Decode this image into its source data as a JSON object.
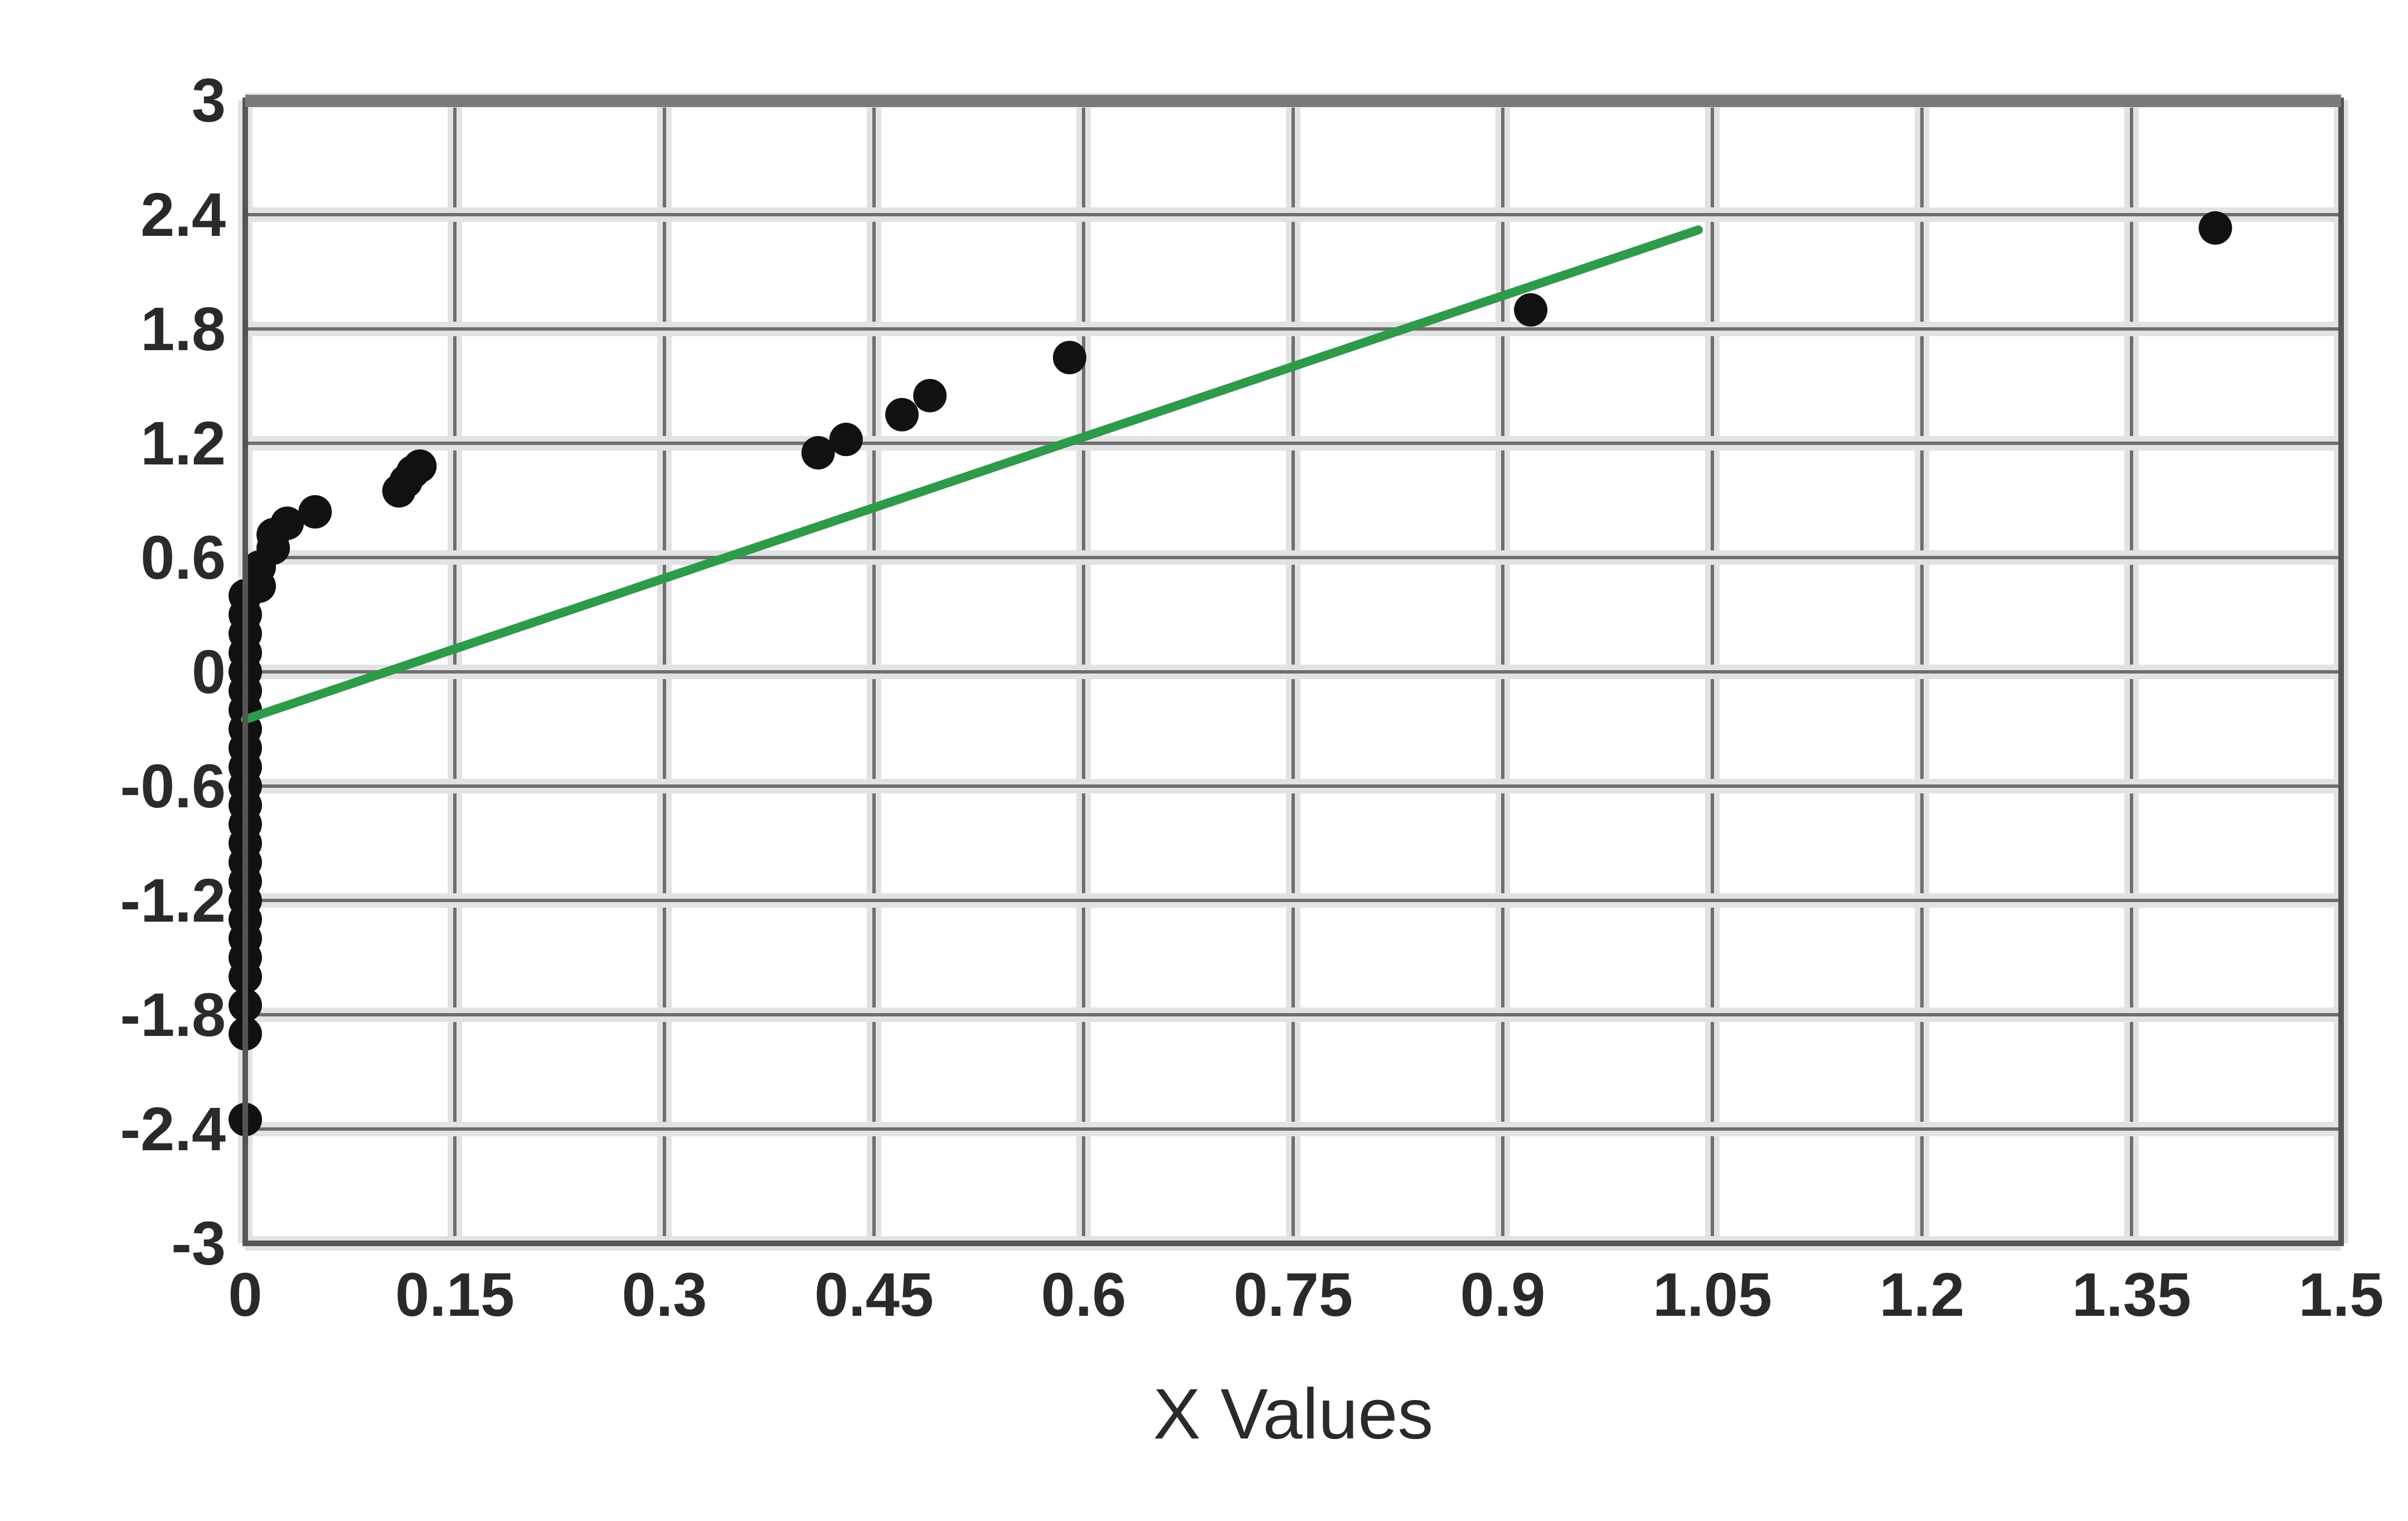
{
  "chart_data": {
    "type": "scatter",
    "title": "",
    "xlabel": "X Values",
    "ylabel": "",
    "xlim": [
      0,
      1.5
    ],
    "ylim": [
      -3,
      3
    ],
    "grid": true,
    "x_ticks": [
      "0",
      "0.15",
      "0.3",
      "0.45",
      "0.6",
      "0.75",
      "0.9",
      "1.05",
      "1.2",
      "1.35",
      "1.5"
    ],
    "y_ticks": [
      "3",
      "2.4",
      "1.8",
      "1.2",
      "0.6",
      "0",
      "-0.6",
      "-1.2",
      "-1.8",
      "-2.4",
      "-3"
    ],
    "series": [
      {
        "type": "scatter",
        "color": "#111111",
        "points": [
          [
            0,
            -2.35
          ],
          [
            0,
            -1.9
          ],
          [
            0,
            -1.75
          ],
          [
            0,
            -1.6
          ],
          [
            0,
            -1.5
          ],
          [
            0,
            -1.4
          ],
          [
            0,
            -1.3
          ],
          [
            0,
            -1.2
          ],
          [
            0,
            -1.1
          ],
          [
            0,
            -1.0
          ],
          [
            0,
            -0.9
          ],
          [
            0,
            -0.8
          ],
          [
            0,
            -0.7
          ],
          [
            0,
            -0.6
          ],
          [
            0,
            -0.5
          ],
          [
            0,
            -0.4
          ],
          [
            0,
            -0.3
          ],
          [
            0,
            -0.2
          ],
          [
            0,
            -0.1
          ],
          [
            0,
            0
          ],
          [
            0,
            0.1
          ],
          [
            0,
            0.2
          ],
          [
            0,
            0.3
          ],
          [
            0,
            0.4
          ],
          [
            0.01,
            0.45
          ],
          [
            0.01,
            0.55
          ],
          [
            0.02,
            0.65
          ],
          [
            0.02,
            0.72
          ],
          [
            0.03,
            0.78
          ],
          [
            0.05,
            0.84
          ],
          [
            0.11,
            0.95
          ],
          [
            0.115,
            1.0
          ],
          [
            0.12,
            1.05
          ],
          [
            0.125,
            1.08
          ],
          [
            0.41,
            1.15
          ],
          [
            0.43,
            1.22
          ],
          [
            0.47,
            1.35
          ],
          [
            0.49,
            1.45
          ],
          [
            0.59,
            1.65
          ],
          [
            0.92,
            1.9
          ],
          [
            1.41,
            2.33
          ]
        ]
      },
      {
        "type": "line",
        "color": "#2e9a4a",
        "points": [
          [
            0,
            -0.25
          ],
          [
            1.04,
            2.32
          ]
        ]
      }
    ]
  }
}
